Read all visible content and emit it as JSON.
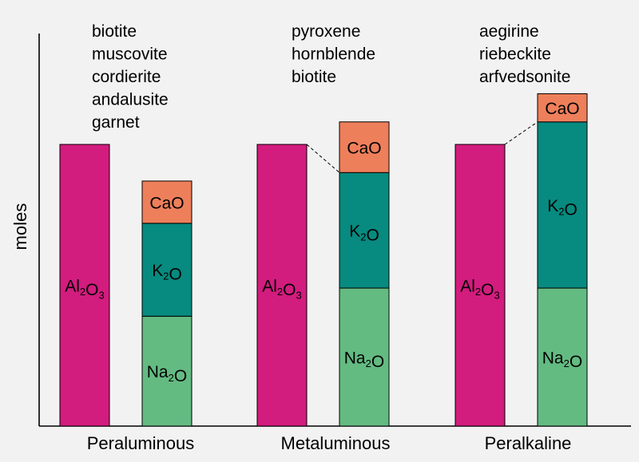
{
  "chart_data": {
    "type": "stacked-bar",
    "ylabel": "moles",
    "ylim": [
      0,
      100
    ],
    "groups": [
      {
        "name": "Peraluminous",
        "minerals": [
          "biotite",
          "muscovite",
          "cordierite",
          "andalusite",
          "garnet"
        ],
        "al2o3": 100,
        "alkali_stack": [
          {
            "oxide": "Na₂O",
            "value": 39,
            "color": "#63bb82"
          },
          {
            "oxide": "K₂O",
            "value": 33,
            "color": "#078a7f"
          },
          {
            "oxide": "CaO",
            "value": 15,
            "color": "#ee7f5b"
          }
        ]
      },
      {
        "name": "Metaluminous",
        "minerals": [
          "pyroxene",
          "hornblende",
          "biotite"
        ],
        "al2o3": 100,
        "alkali_stack": [
          {
            "oxide": "Na₂O",
            "value": 49,
            "color": "#63bb82"
          },
          {
            "oxide": "K₂O",
            "value": 41,
            "color": "#078a7f"
          },
          {
            "oxide": "CaO",
            "value": 18,
            "color": "#ee7f5b"
          }
        ]
      },
      {
        "name": "Peralkaline",
        "minerals": [
          "aegirine",
          "riebeckite",
          "arfvedsonite"
        ],
        "al2o3": 100,
        "alkali_stack": [
          {
            "oxide": "Na₂O",
            "value": 49,
            "color": "#63bb82"
          },
          {
            "oxide": "K₂O",
            "value": 59,
            "color": "#078a7f"
          },
          {
            "oxide": "CaO",
            "value": 10,
            "color": "#ee7f5b"
          }
        ]
      }
    ],
    "al2o3_label": "Al₂O₃",
    "al2o3_color": "#d21c7e"
  }
}
